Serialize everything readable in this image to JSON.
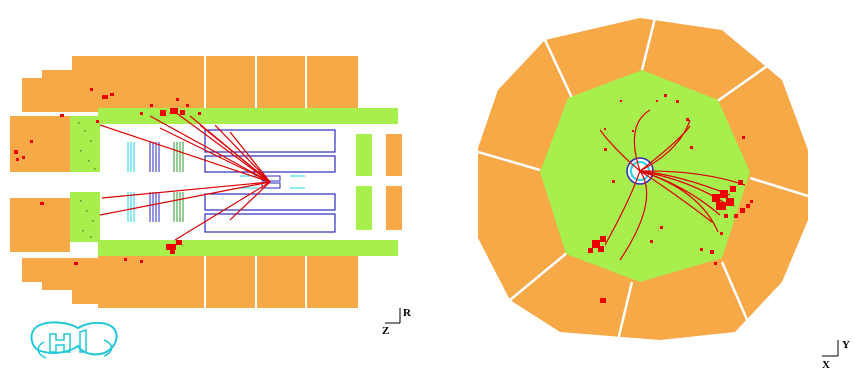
{
  "side_view": {
    "axis": {
      "horizontal": "Z",
      "vertical": "R"
    },
    "logo": "H1"
  },
  "end_view": {
    "axis": {
      "horizontal": "X",
      "vertical": "Y"
    }
  },
  "colors": {
    "hadronic_calorimeter": "#f7a847",
    "em_calorimeter": "#a6ef4d",
    "energy_deposit": "#ee0000",
    "track": "#dd0000",
    "central_tracker": "#2b2bbf",
    "silicon_tracker": "#22d8e8",
    "muon_chambers": "#2b9a2b",
    "logo": "#22c8d8",
    "axis": "#000000",
    "background": "#ffffff"
  }
}
